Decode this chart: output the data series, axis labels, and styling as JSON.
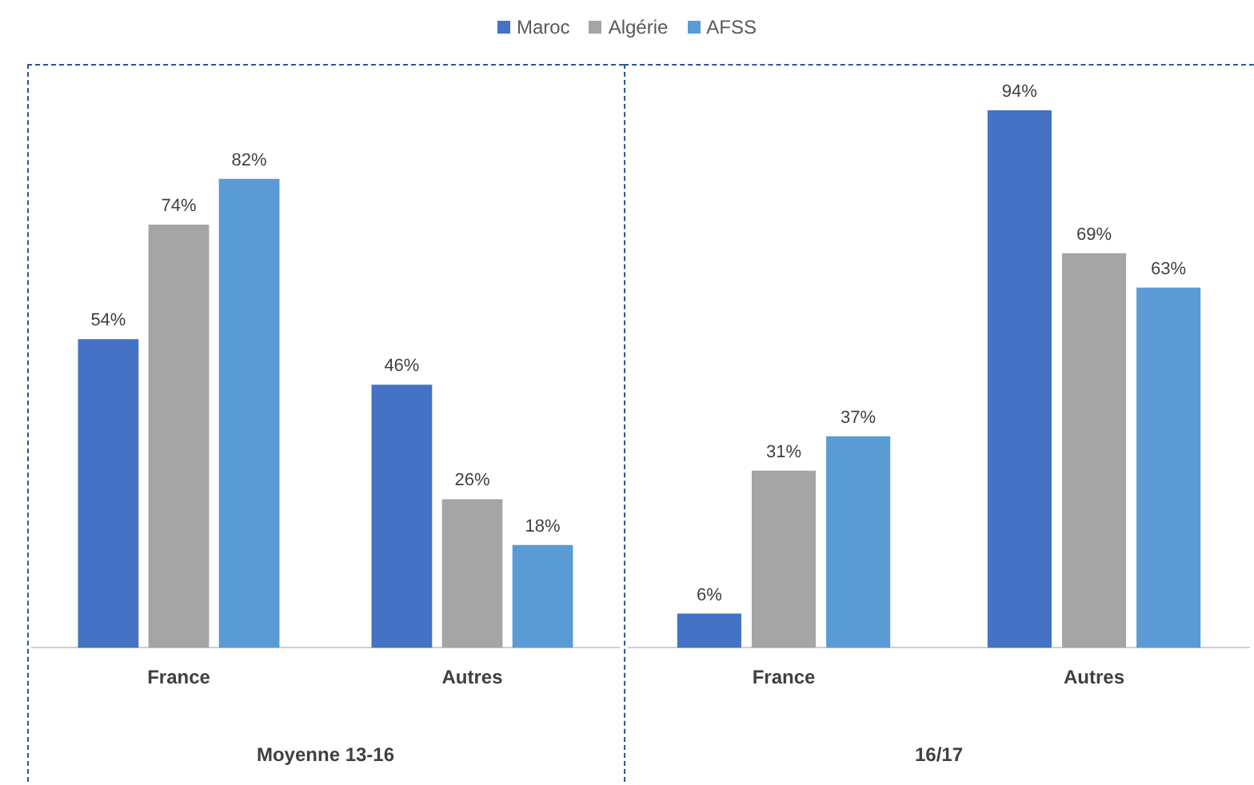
{
  "chart_data": [
    {
      "type": "bar",
      "xlabel": "Moyenne 13-16",
      "categories": [
        "France",
        "Autres"
      ],
      "series": [
        {
          "name": "Maroc",
          "color": "#4472c4",
          "values": [
            54,
            46
          ],
          "value_labels": [
            "54%",
            "46%"
          ]
        },
        {
          "name": "Algérie",
          "color": "#a5a5a5",
          "values": [
            74,
            26
          ],
          "value_labels": [
            "74%",
            "26%"
          ]
        },
        {
          "name": "AFSS",
          "color": "#5b9bd5",
          "values": [
            82,
            18
          ],
          "value_labels": [
            "82%",
            "18%"
          ]
        }
      ],
      "tick_labels": "x",
      "legend": "top",
      "grid": false
    },
    {
      "type": "bar",
      "xlabel": "16/17",
      "categories": [
        "France",
        "Autres"
      ],
      "series": [
        {
          "color": "#4472c4",
          "values": [
            6,
            94
          ],
          "value_labels": [
            "6%",
            "94%"
          ]
        },
        {
          "color": "#a5a5a5",
          "values": [
            31,
            69
          ],
          "value_labels": [
            "31%",
            "69%"
          ]
        },
        {
          "color": "#5b9bd5",
          "values": [
            37,
            63
          ],
          "value_labels": [
            "37%",
            "63%"
          ]
        }
      ],
      "tick_labels": "x",
      "grid": false
    }
  ]
}
